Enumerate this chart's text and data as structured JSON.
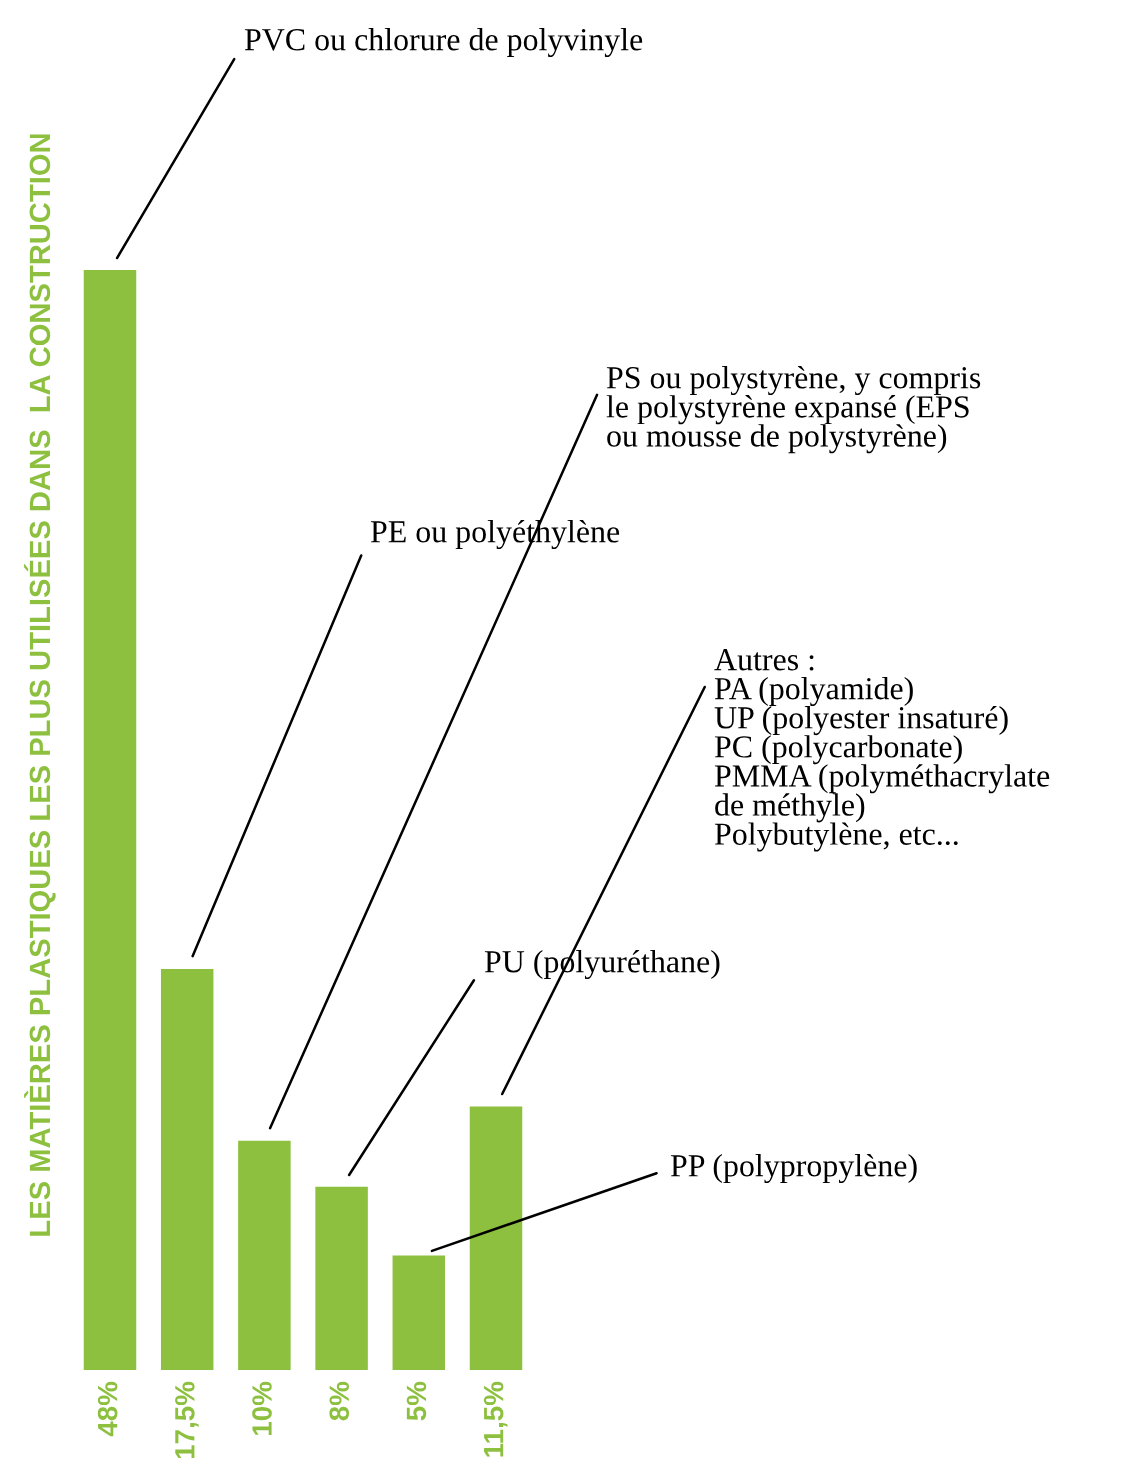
{
  "chart_data": {
    "type": "bar",
    "ylabel": "LES MATIÈRES PLASTIQUES LES PLUS UTILISÉES DANS  LA CONSTRUCTION",
    "categories": [
      null,
      null,
      null,
      null,
      null,
      null
    ],
    "annotations": [
      "PVC ou chlorure de polyvinyle",
      "PE ou polyéthylène",
      "PS ou polystyrène, y compris\nle polystyrène expansé (EPS\nou mousse de polystyrène)",
      "PU (polyuréthane)",
      "PP (polypropylène)",
      "Autres :\nPA (polyamide)\nUP (polyester insaturé)\nPC (polycarbonate)\nPMMA (polyméthacrylate\nde méthyle)\nPolybutylène, etc..."
    ],
    "values": [
      48,
      17.5,
      10,
      8,
      5,
      11.5
    ],
    "color": "#8dc03f",
    "value_labels": [
      "48%",
      "17,5%",
      "10%",
      "8%",
      "5%",
      "11,5%"
    ]
  }
}
